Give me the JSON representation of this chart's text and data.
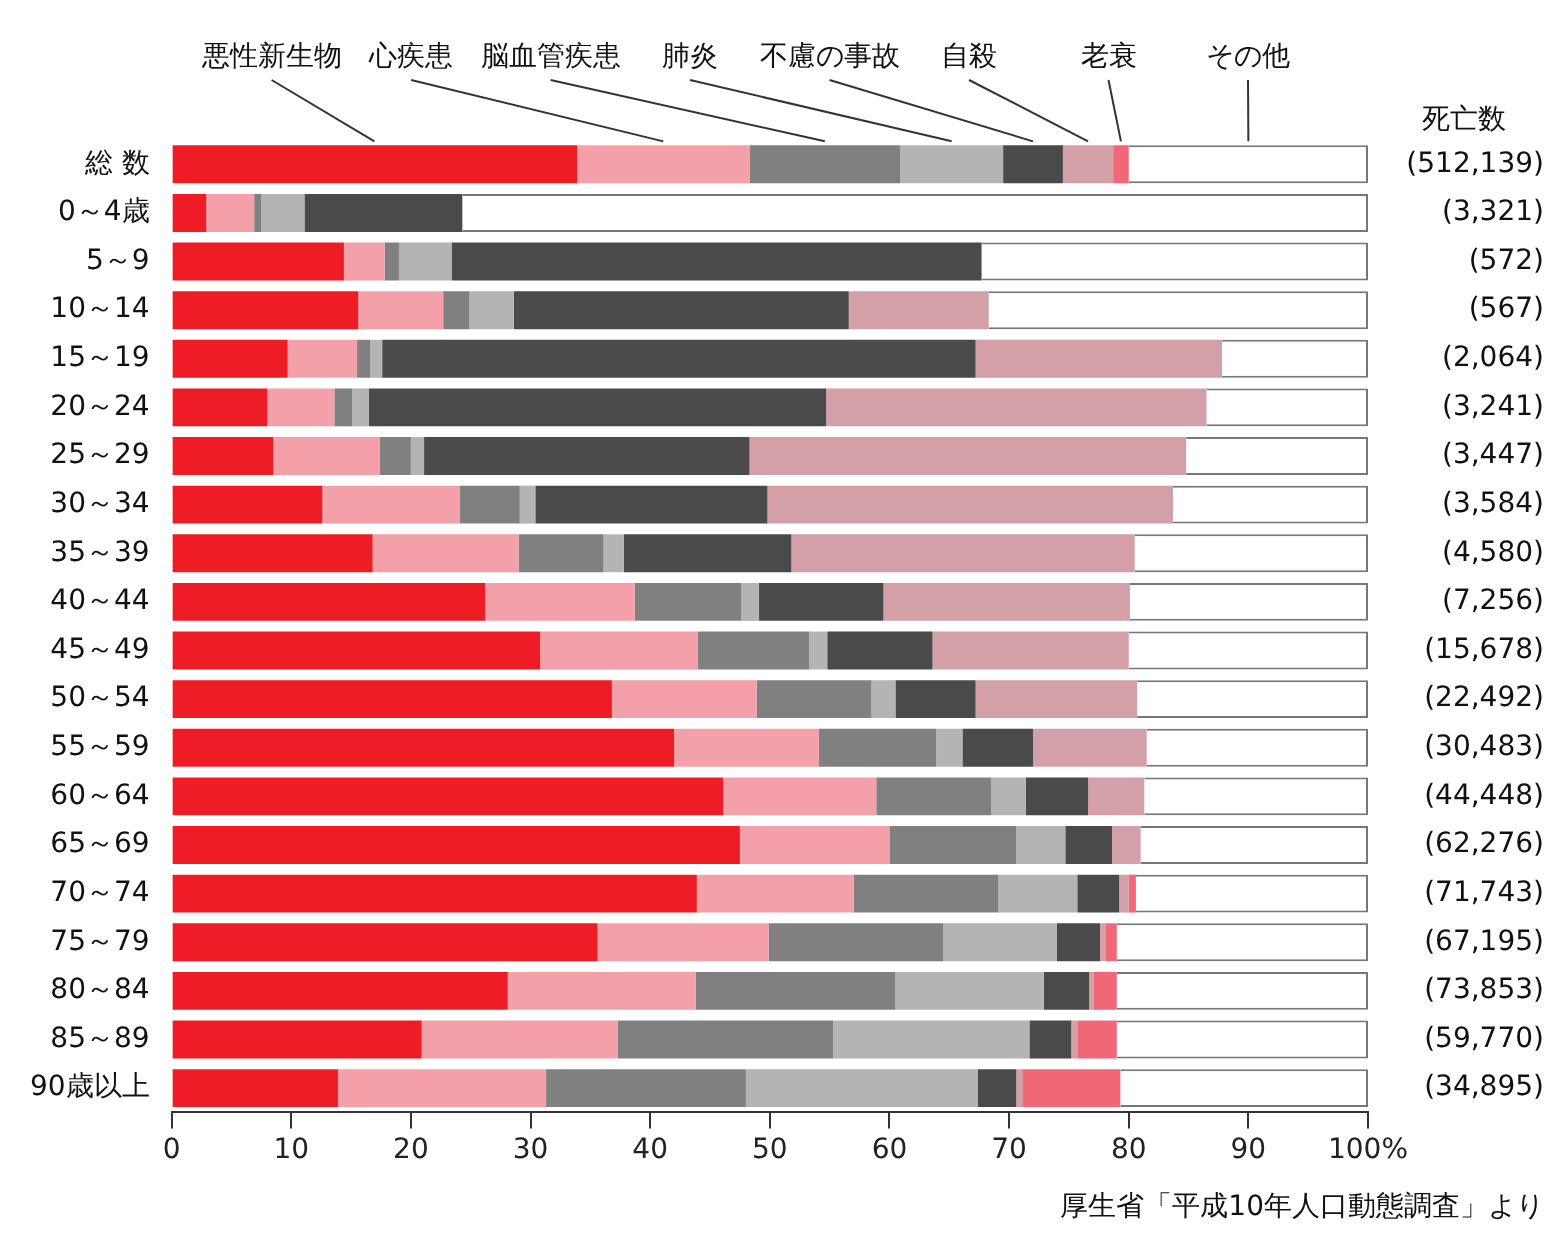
{
  "chart_data": {
    "type": "bar",
    "orientation": "horizontal",
    "stacked": true,
    "legend": "top",
    "grid": false,
    "categories": [
      "総 数",
      "0～4歳",
      "5～9",
      "10～14",
      "15～19",
      "20～24",
      "25～29",
      "30～34",
      "35～39",
      "40～44",
      "45～49",
      "50～54",
      "55～59",
      "60～64",
      "65～69",
      "70～74",
      "75～79",
      "80～84",
      "85～89",
      "90歳以上"
    ],
    "xlim": [
      0,
      100
    ],
    "xticks": [
      0,
      10,
      20,
      30,
      40,
      50,
      60,
      70,
      80,
      90,
      {
        "value": 100,
        "label": "100%"
      }
    ],
    "y2label": "死亡数",
    "series": [
      {
        "name": "悪性新生物",
        "color": "#ee1c25",
        "values": [
          33.9,
          2.9,
          14.4,
          15.6,
          9.7,
          8.0,
          8.5,
          12.6,
          16.8,
          26.2,
          30.8,
          36.8,
          42.0,
          46.1,
          47.5,
          43.9,
          35.6,
          28.1,
          20.9,
          13.9
        ]
      },
      {
        "name": "心疾患",
        "color": "#f4a0a8",
        "values": [
          14.4,
          4.0,
          3.4,
          7.1,
          5.8,
          5.6,
          8.9,
          11.5,
          12.2,
          12.5,
          13.2,
          12.1,
          12.1,
          12.8,
          12.5,
          13.1,
          14.3,
          15.7,
          16.4,
          17.4
        ]
      },
      {
        "name": "脳血管疾患",
        "color": "#808080",
        "values": [
          12.6,
          0.6,
          1.2,
          2.2,
          1.1,
          1.5,
          2.6,
          5.0,
          7.1,
          8.9,
          9.3,
          9.6,
          9.8,
          9.6,
          10.6,
          12.1,
          14.6,
          16.7,
          18.0,
          16.7
        ]
      },
      {
        "name": "肺炎",
        "color": "#b4b4b4",
        "values": [
          8.6,
          3.6,
          4.4,
          3.7,
          1.0,
          1.4,
          1.1,
          1.3,
          1.7,
          1.5,
          1.5,
          2.0,
          2.2,
          2.9,
          4.1,
          6.6,
          9.5,
          12.4,
          16.4,
          19.4
        ]
      },
      {
        "name": "不慮の事故",
        "color": "#4a4a4a",
        "values": [
          5.0,
          13.2,
          44.3,
          28.0,
          49.6,
          38.2,
          27.2,
          19.4,
          14.0,
          10.4,
          8.8,
          6.7,
          5.9,
          5.2,
          3.9,
          3.5,
          3.6,
          3.8,
          3.5,
          3.2
        ]
      },
      {
        "name": "自殺",
        "color": "#d4a0a8",
        "values": [
          4.2,
          0,
          0,
          11.7,
          20.6,
          31.8,
          36.5,
          33.9,
          28.7,
          20.6,
          16.4,
          13.5,
          9.5,
          4.7,
          2.4,
          0.8,
          0.5,
          0.4,
          0.5,
          0.5
        ]
      },
      {
        "name": "老衰",
        "color": "#f06878",
        "values": [
          1.3,
          0,
          0,
          0,
          0,
          0,
          0,
          0,
          0,
          0,
          0,
          0,
          0,
          0,
          0,
          0.6,
          0.9,
          1.9,
          3.3,
          8.2
        ]
      },
      {
        "name": "その他",
        "color": "#ffffff",
        "values": [
          20.0,
          75.7,
          32.3,
          31.7,
          12.2,
          13.5,
          15.2,
          16.3,
          19.5,
          19.9,
          20.0,
          19.3,
          18.5,
          18.7,
          19.0,
          19.4,
          21.0,
          21.0,
          21.0,
          20.7
        ]
      }
    ],
    "y2_categories": [
      "(512,139)",
      "(3,321)",
      "(572)",
      "(567)",
      "(2,064)",
      "(3,241)",
      "(3,447)",
      "(3,584)",
      "(4,580)",
      "(7,256)",
      "(15,678)",
      "(22,492)",
      "(30,483)",
      "(44,448)",
      "(62,276)",
      "(71,743)",
      "(67,195)",
      "(73,853)",
      "(59,770)",
      "(34,895)"
    ],
    "annotations": [
      "厚生省「平成10年人口動態調査」より"
    ]
  }
}
